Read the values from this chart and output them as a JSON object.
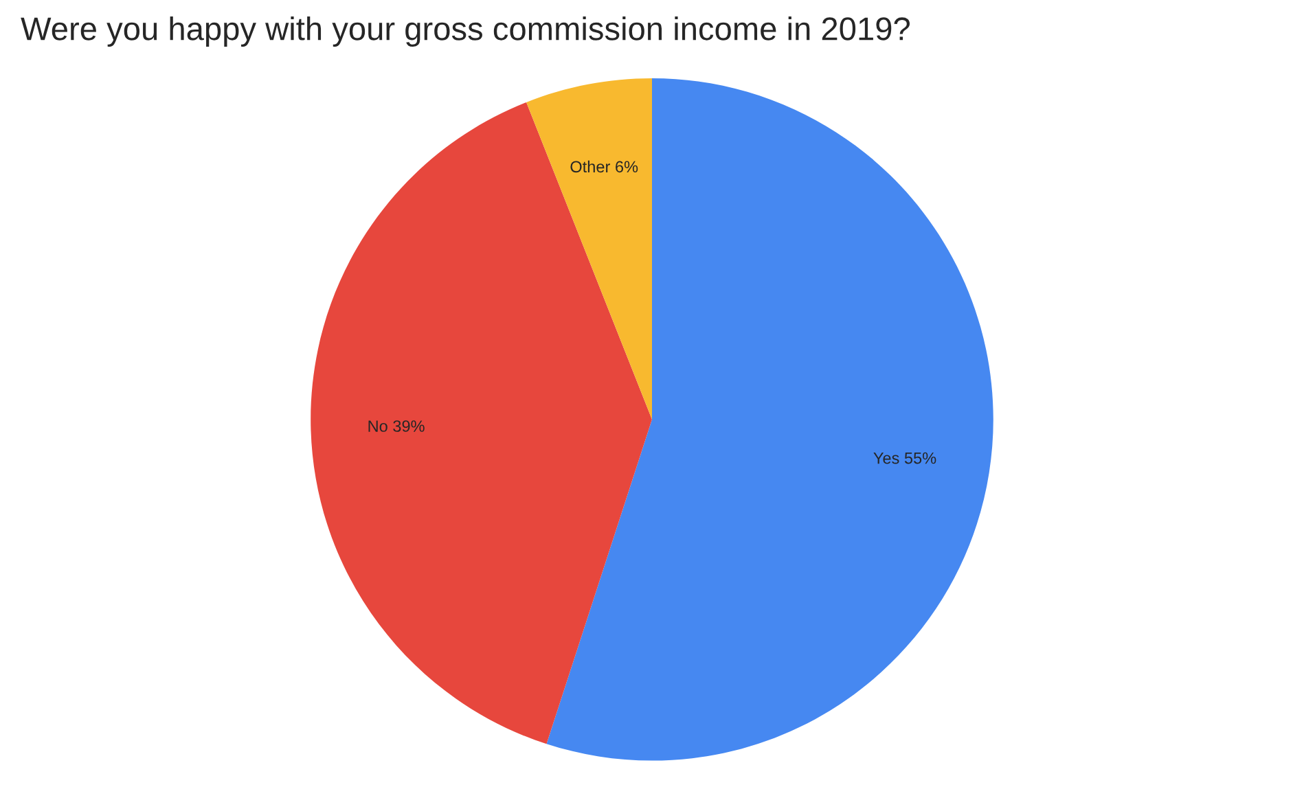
{
  "chart_data": {
    "type": "pie",
    "title": "Were you happy with your gross commission income in 2019?",
    "categories": [
      "Yes",
      "No",
      "Other"
    ],
    "values": [
      55,
      39,
      6
    ],
    "value_labels": [
      "55%",
      "39%",
      "6%"
    ],
    "colors": [
      "#4688f1",
      "#e7473d",
      "#f8b92f"
    ]
  }
}
